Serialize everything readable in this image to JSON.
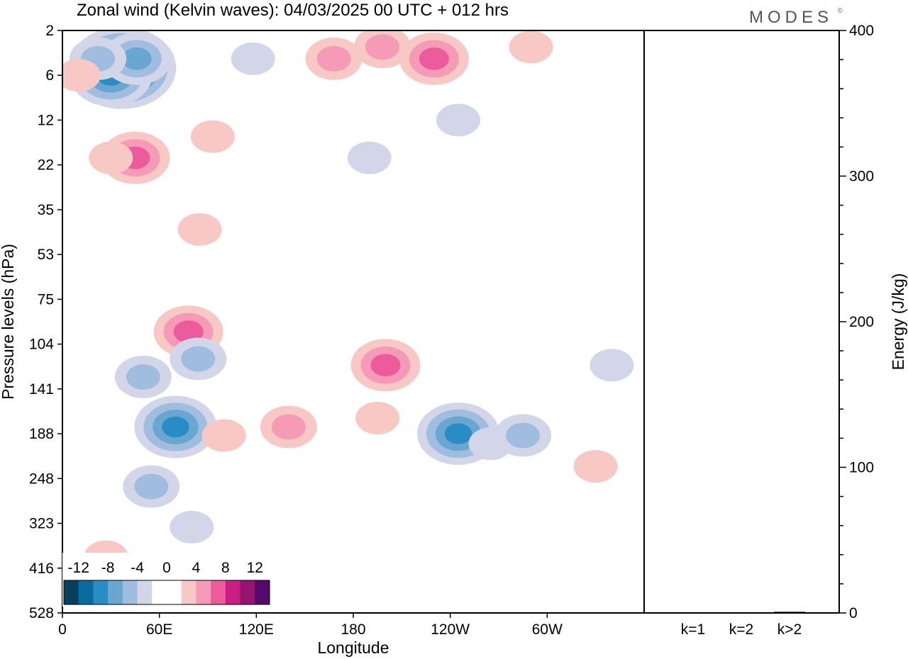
{
  "header": {
    "title": "Zonal wind (Kelvin waves):  04/03/2025  00 UTC  + 012 hrs",
    "brand": "MODES",
    "brand_mark": "©"
  },
  "chart_data": [
    {
      "type": "heatmap",
      "title": "Zonal wind (Kelvin waves):  04/03/2025  00 UTC  + 012 hrs",
      "xlabel": "Longitude",
      "ylabel": "Pressure levels (hPa)",
      "x_ticks": [
        "0",
        "60E",
        "120E",
        "180",
        "120W",
        "60W"
      ],
      "x_tick_values": [
        0,
        60,
        120,
        180,
        240,
        300
      ],
      "xlim": [
        0,
        360
      ],
      "y_ticks": [
        "2",
        "6",
        "12",
        "22",
        "35",
        "53",
        "75",
        "104",
        "141",
        "188",
        "248",
        "323",
        "416",
        "528"
      ],
      "y_order": "2 at top, 528 at bottom",
      "colorbar": {
        "labels": [
          "-12",
          "-8",
          "-4",
          "0",
          "4",
          "8",
          "12"
        ],
        "levels": [
          -14,
          -12,
          -10,
          -8,
          -6,
          -4,
          -2,
          0,
          2,
          4,
          6,
          8,
          10,
          12,
          14
        ],
        "colors": [
          "#083f5c",
          "#0c6b9e",
          "#2a8cc4",
          "#6aa7d0",
          "#a0bddf",
          "#d3d6e8",
          "#ffffff",
          "#ffffff",
          "#f8c9c4",
          "#f59ab7",
          "#ec5c9d",
          "#c91f85",
          "#931572",
          "#56086b"
        ]
      },
      "blobs": [
        {
          "lon": 37,
          "p": 5,
          "u": -12
        },
        {
          "lon": 30,
          "p": 6,
          "u": -8
        },
        {
          "lon": 46,
          "p": 4,
          "u": -6
        },
        {
          "lon": 22,
          "p": 4,
          "u": -4
        },
        {
          "lon": 10,
          "p": 6,
          "u": 3
        },
        {
          "lon": 45,
          "p": 20,
          "u": 6
        },
        {
          "lon": 30,
          "p": 20,
          "u": 3
        },
        {
          "lon": 93,
          "p": 15,
          "u": 2
        },
        {
          "lon": 168,
          "p": 4,
          "u": 4
        },
        {
          "lon": 198,
          "p": 3,
          "u": 4
        },
        {
          "lon": 230,
          "p": 4,
          "u": 6
        },
        {
          "lon": 118,
          "p": 4,
          "u": -2
        },
        {
          "lon": 245,
          "p": 12,
          "u": -2
        },
        {
          "lon": 190,
          "p": 20,
          "u": -2
        },
        {
          "lon": 290,
          "p": 3,
          "u": 3
        },
        {
          "lon": 85,
          "p": 42,
          "u": 3
        },
        {
          "lon": 50,
          "p": 130,
          "u": -4
        },
        {
          "lon": 78,
          "p": 95,
          "u": 6
        },
        {
          "lon": 84,
          "p": 115,
          "u": -4
        },
        {
          "lon": 70,
          "p": 180,
          "u": -8
        },
        {
          "lon": 55,
          "p": 260,
          "u": -4
        },
        {
          "lon": 80,
          "p": 330,
          "u": -2
        },
        {
          "lon": 100,
          "p": 190,
          "u": 2
        },
        {
          "lon": 140,
          "p": 180,
          "u": 4
        },
        {
          "lon": 200,
          "p": 120,
          "u": 6
        },
        {
          "lon": 195,
          "p": 170,
          "u": 2
        },
        {
          "lon": 245,
          "p": 188,
          "u": -8
        },
        {
          "lon": 265,
          "p": 200,
          "u": -2
        },
        {
          "lon": 285,
          "p": 190,
          "u": -4
        },
        {
          "lon": 330,
          "p": 230,
          "u": 3
        },
        {
          "lon": 340,
          "p": 120,
          "u": -2
        },
        {
          "lon": 27,
          "p": 390,
          "u": 2
        }
      ]
    },
    {
      "type": "bar",
      "categories": [
        "k=1",
        "k=2",
        "k>2"
      ],
      "values": [
        0.3,
        0.3,
        0.8
      ],
      "ylabel": "Energy (J/kg)",
      "ylim": [
        0,
        400
      ],
      "y_ticks": [
        "0",
        "100",
        "200",
        "300",
        "400"
      ]
    }
  ]
}
